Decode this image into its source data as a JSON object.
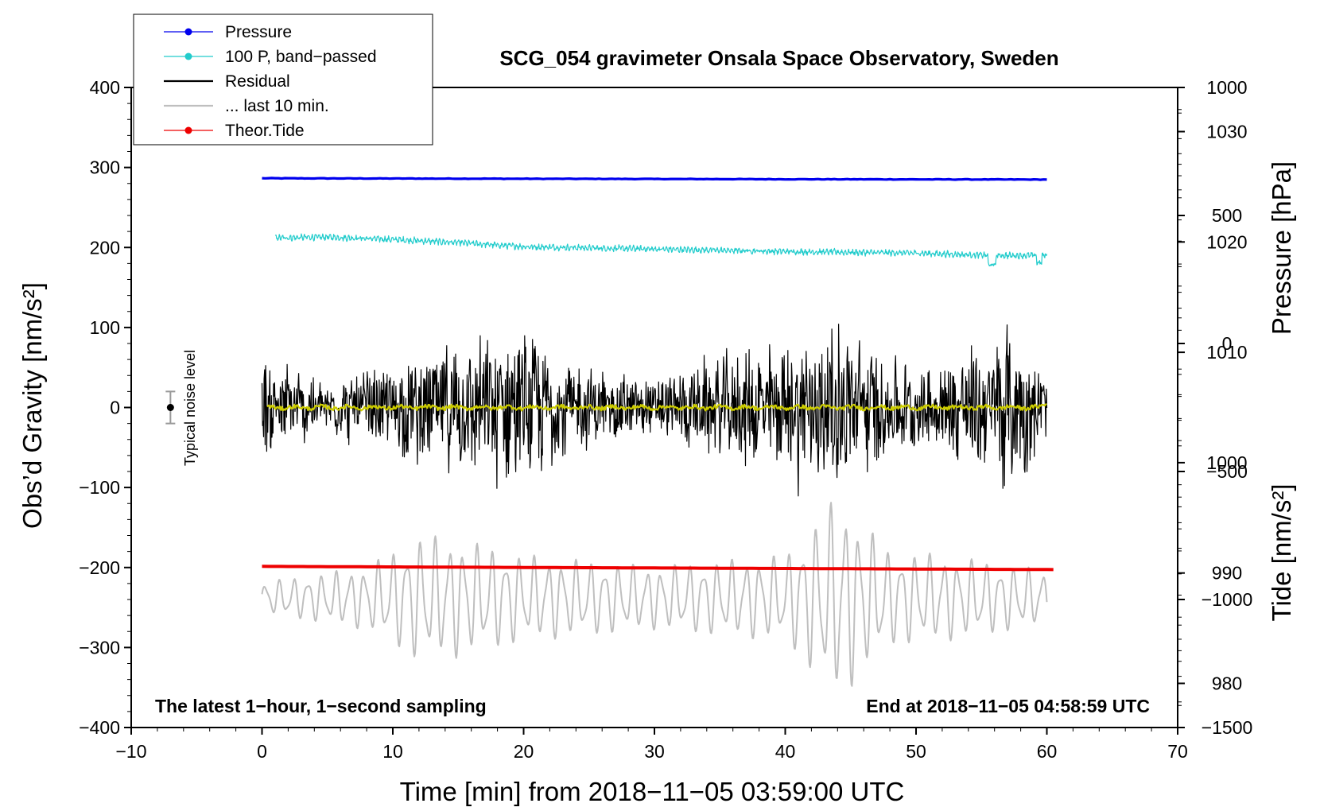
{
  "chart_data": {
    "type": "line",
    "title": "SCG_054 gravimeter Onsala Space Observatory, Sweden",
    "xlabel": "Time [min] from 2018−11−05 03:59:00 UTC",
    "ylabel_left": "Obs’d Gravity [nm/s²]",
    "ylabel_pressure": "Pressure [hPa]",
    "ylabel_tide": "Tide [nm/s²]",
    "xlim": [
      -10,
      70
    ],
    "ylim": [
      -400,
      400
    ],
    "pressure_axis_range": [
      976,
      1034
    ],
    "tide_axis_range": [
      -1500,
      1000
    ],
    "x_ticks": [
      "−10",
      "0",
      "10",
      "20",
      "30",
      "40",
      "50",
      "60",
      "70"
    ],
    "y_ticks": [
      "−400",
      "−300",
      "−200",
      "−100",
      "0",
      "100",
      "200",
      "300",
      "400"
    ],
    "pressure_ticks": [
      "980",
      "990",
      "1000",
      "1010",
      "1020",
      "1030"
    ],
    "tide_ticks": [
      "−1500",
      "−1000",
      "−500",
      "0",
      "500",
      "1000"
    ],
    "note_left": "The latest 1−hour, 1−second sampling",
    "note_right": "End at 2018−11−05 04:58:59 UTC",
    "noise_label": "Typical noise level",
    "noise_level": 20,
    "legend": [
      {
        "label": "Pressure",
        "color": "#0000ee",
        "marker": true
      },
      {
        "label": "100 P, band−passed",
        "color": "#22cccc",
        "marker": true
      },
      {
        "label": "Residual",
        "color": "#000000",
        "marker": false
      },
      {
        "label": "... last 10 min.",
        "color": "#bfbfbf",
        "marker": false
      },
      {
        "label": "Theor.Tide",
        "color": "#ee0000",
        "marker": true
      }
    ],
    "series": [
      {
        "name": "Pressure",
        "color": "#0000ee",
        "x": [
          0,
          10,
          20,
          30,
          40,
          50,
          60
        ],
        "y": [
          286.5,
          286.2,
          285.9,
          285.6,
          285.3,
          285.1,
          284.9
        ]
      },
      {
        "name": "100 P, band−passed",
        "color": "#22cccc",
        "x": [
          1,
          5,
          10,
          15,
          20,
          30,
          40,
          50,
          56,
          60
        ],
        "y": [
          212,
          213,
          210,
          206,
          201,
          198,
          195,
          193,
          190,
          190
        ]
      },
      {
        "name": "Residual",
        "color": "#000000",
        "x": [
          0,
          60
        ],
        "y": [
          0,
          0
        ],
        "envelope_x": [
          0,
          5,
          10,
          14,
          19.5,
          25,
          30,
          34,
          39,
          43,
          50,
          57.5,
          60
        ],
        "envelope_y": [
          60,
          30,
          55,
          70,
          90,
          45,
          35,
          55,
          75,
          105,
          45,
          95,
          40
        ]
      },
      {
        "name": "Residual smoothed",
        "color": "#cccc00",
        "x": [
          0,
          60
        ],
        "y": [
          0,
          0
        ]
      },
      {
        "name": "... last 10 min.",
        "color": "#bfbfbf",
        "x": [
          0,
          60
        ],
        "y": [
          -250,
          -250
        ],
        "envelope_x": [
          0,
          8,
          12,
          15,
          20,
          30,
          40,
          44,
          48,
          52,
          60
        ],
        "envelope_y": [
          20,
          40,
          80,
          75,
          55,
          40,
          55,
          130,
          60,
          55,
          35
        ]
      },
      {
        "name": "Theor.Tide",
        "color": "#ee0000",
        "x": [
          0,
          60.5
        ],
        "y": [
          -198.6,
          -202.6
        ]
      }
    ]
  }
}
